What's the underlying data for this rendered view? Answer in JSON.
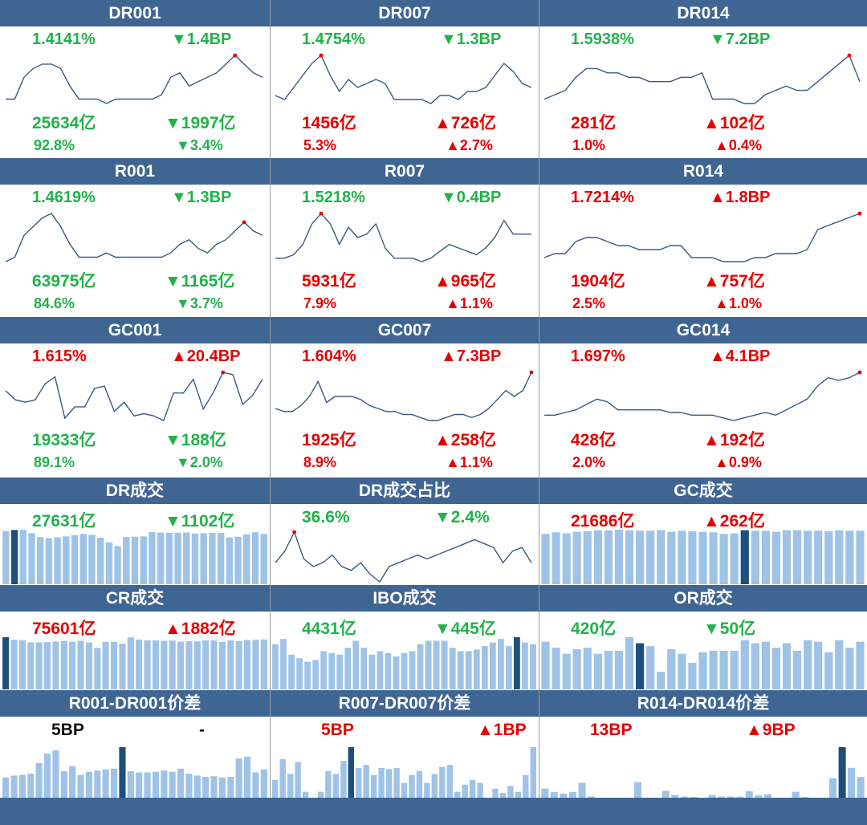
{
  "colors": {
    "header_bg": "#3f6593",
    "up": "#e50000",
    "down": "#21b24a",
    "line": "#3b5a80",
    "bar": "#9fc3e7",
    "bar_highlight": "#1e4f7c",
    "dot": "#e50000"
  },
  "panels": [
    {
      "title": "DR001",
      "rate": "1.4141%",
      "rate_chg": "▼1.4BP",
      "vol": "25634亿",
      "vol_chg": "▼1997亿",
      "pct": "92.8%",
      "pct_chg": "▼3.4%",
      "dir": {
        "rate": "dn",
        "rate_chg": "dn",
        "vol": "dn",
        "vol_chg": "dn",
        "pct": "dn",
        "pct_chg": "dn"
      }
    },
    {
      "title": "DR007",
      "rate": "1.4754%",
      "rate_chg": "▼1.3BP",
      "vol": "1456亿",
      "vol_chg": "▲726亿",
      "pct": "5.3%",
      "pct_chg": "▲2.7%",
      "dir": {
        "rate": "dn",
        "rate_chg": "dn",
        "vol": "up",
        "vol_chg": "up",
        "pct": "up",
        "pct_chg": "up"
      }
    },
    {
      "title": "DR014",
      "rate": "1.5938%",
      "rate_chg": "▼7.2BP",
      "vol": "281亿",
      "vol_chg": "▲102亿",
      "pct": "1.0%",
      "pct_chg": "▲0.4%",
      "dir": {
        "rate": "dn",
        "rate_chg": "dn",
        "vol": "up",
        "vol_chg": "up",
        "pct": "up",
        "pct_chg": "up"
      }
    },
    {
      "title": "R001",
      "rate": "1.4619%",
      "rate_chg": "▼1.3BP",
      "vol": "63975亿",
      "vol_chg": "▼1165亿",
      "pct": "84.6%",
      "pct_chg": "▼3.7%",
      "dir": {
        "rate": "dn",
        "rate_chg": "dn",
        "vol": "dn",
        "vol_chg": "dn",
        "pct": "dn",
        "pct_chg": "dn"
      }
    },
    {
      "title": "R007",
      "rate": "1.5218%",
      "rate_chg": "▼0.4BP",
      "vol": "5931亿",
      "vol_chg": "▲965亿",
      "pct": "7.9%",
      "pct_chg": "▲1.1%",
      "dir": {
        "rate": "dn",
        "rate_chg": "dn",
        "vol": "up",
        "vol_chg": "up",
        "pct": "up",
        "pct_chg": "up"
      }
    },
    {
      "title": "R014",
      "rate": "1.7214%",
      "rate_chg": "▲1.8BP",
      "vol": "1904亿",
      "vol_chg": "▲757亿",
      "pct": "2.5%",
      "pct_chg": "▲1.0%",
      "dir": {
        "rate": "up",
        "rate_chg": "up",
        "vol": "up",
        "vol_chg": "up",
        "pct": "up",
        "pct_chg": "up"
      }
    },
    {
      "title": "GC001",
      "rate": "1.615%",
      "rate_chg": "▲20.4BP",
      "vol": "19333亿",
      "vol_chg": "▼188亿",
      "pct": "89.1%",
      "pct_chg": "▼2.0%",
      "dir": {
        "rate": "up",
        "rate_chg": "up",
        "vol": "dn",
        "vol_chg": "dn",
        "pct": "dn",
        "pct_chg": "dn"
      }
    },
    {
      "title": "GC007",
      "rate": "1.604%",
      "rate_chg": "▲7.3BP",
      "vol": "1925亿",
      "vol_chg": "▲258亿",
      "pct": "8.9%",
      "pct_chg": "▲1.1%",
      "dir": {
        "rate": "up",
        "rate_chg": "up",
        "vol": "up",
        "vol_chg": "up",
        "pct": "up",
        "pct_chg": "up"
      }
    },
    {
      "title": "GC014",
      "rate": "1.697%",
      "rate_chg": "▲4.1BP",
      "vol": "428亿",
      "vol_chg": "▲192亿",
      "pct": "2.0%",
      "pct_chg": "▲0.9%",
      "dir": {
        "rate": "up",
        "rate_chg": "up",
        "vol": "up",
        "vol_chg": "up",
        "pct": "up",
        "pct_chg": "up"
      }
    },
    {
      "title": "DR成交",
      "val": "27631亿",
      "chg": "▼1102亿",
      "dir": {
        "val": "dn",
        "chg": "dn"
      }
    },
    {
      "title": "DR成交占比",
      "val": "36.6%",
      "chg": "▼2.4%",
      "dir": {
        "val": "dn",
        "chg": "dn"
      }
    },
    {
      "title": "GC成交",
      "val": "21686亿",
      "chg": "▲262亿",
      "dir": {
        "val": "up",
        "chg": "up"
      }
    },
    {
      "title": "CR成交",
      "val": "75601亿",
      "chg": "▲1882亿",
      "dir": {
        "val": "up",
        "chg": "up"
      }
    },
    {
      "title": "IBO成交",
      "val": "4431亿",
      "chg": "▼445亿",
      "dir": {
        "val": "dn",
        "chg": "dn"
      }
    },
    {
      "title": "OR成交",
      "val": "420亿",
      "chg": "▼50亿",
      "dir": {
        "val": "dn",
        "chg": "dn"
      }
    },
    {
      "title": "R001-DR001价差",
      "val": "5BP",
      "chg": "-",
      "dir": {
        "val": "bk",
        "chg": "bk"
      }
    },
    {
      "title": "R007-DR007价差",
      "val": "5BP",
      "chg": "▲1BP",
      "dir": {
        "val": "up",
        "chg": "up"
      }
    },
    {
      "title": "R014-DR014价差",
      "val": "13BP",
      "chg": "▲9BP",
      "dir": {
        "val": "up",
        "chg": "up"
      }
    }
  ],
  "chart_data": [
    {
      "type": "line",
      "panel": "DR001",
      "values": [
        1.38,
        1.38,
        1.43,
        1.45,
        1.46,
        1.46,
        1.45,
        1.41,
        1.38,
        1.38,
        1.38,
        1.37,
        1.38,
        1.38,
        1.38,
        1.38,
        1.38,
        1.39,
        1.43,
        1.44,
        1.41,
        1.42,
        1.43,
        1.44,
        1.46,
        1.48,
        1.46,
        1.44,
        1.43
      ],
      "peak_index": 25
    },
    {
      "type": "line",
      "panel": "DR007",
      "values": [
        1.43,
        1.42,
        1.45,
        1.48,
        1.51,
        1.53,
        1.48,
        1.44,
        1.47,
        1.45,
        1.46,
        1.47,
        1.46,
        1.42,
        1.42,
        1.42,
        1.42,
        1.41,
        1.43,
        1.43,
        1.42,
        1.44,
        1.44,
        1.45,
        1.48,
        1.51,
        1.49,
        1.46,
        1.45
      ],
      "peak_index": 5
    },
    {
      "type": "line",
      "panel": "DR014",
      "values": [
        1.56,
        1.57,
        1.58,
        1.61,
        1.63,
        1.63,
        1.62,
        1.62,
        1.61,
        1.61,
        1.6,
        1.6,
        1.6,
        1.61,
        1.61,
        1.62,
        1.56,
        1.56,
        1.56,
        1.55,
        1.55,
        1.57,
        1.58,
        1.59,
        1.58,
        1.58,
        1.6,
        1.62,
        1.64,
        1.66,
        1.6
      ],
      "peak_index": 29
    },
    {
      "type": "line",
      "panel": "R001",
      "values": [
        1.4,
        1.41,
        1.46,
        1.48,
        1.5,
        1.51,
        1.48,
        1.44,
        1.41,
        1.41,
        1.41,
        1.42,
        1.41,
        1.41,
        1.41,
        1.41,
        1.41,
        1.41,
        1.42,
        1.44,
        1.45,
        1.43,
        1.42,
        1.44,
        1.45,
        1.47,
        1.49,
        1.47,
        1.46
      ],
      "peak_index": 26
    },
    {
      "type": "line",
      "panel": "R007",
      "values": [
        1.45,
        1.45,
        1.46,
        1.49,
        1.55,
        1.58,
        1.55,
        1.49,
        1.54,
        1.51,
        1.52,
        1.55,
        1.48,
        1.45,
        1.45,
        1.45,
        1.44,
        1.45,
        1.47,
        1.49,
        1.48,
        1.47,
        1.46,
        1.48,
        1.51,
        1.56,
        1.52,
        1.52,
        1.52
      ],
      "peak_index": 5
    },
    {
      "type": "line",
      "panel": "R014",
      "values": [
        1.63,
        1.64,
        1.64,
        1.67,
        1.68,
        1.68,
        1.67,
        1.66,
        1.66,
        1.65,
        1.65,
        1.65,
        1.66,
        1.66,
        1.63,
        1.63,
        1.63,
        1.62,
        1.62,
        1.62,
        1.63,
        1.63,
        1.64,
        1.64,
        1.64,
        1.65,
        1.7,
        1.71,
        1.72,
        1.73,
        1.74
      ],
      "peak_index": 30
    },
    {
      "type": "line",
      "panel": "GC001",
      "values": [
        1.5,
        1.46,
        1.45,
        1.46,
        1.53,
        1.56,
        1.38,
        1.43,
        1.43,
        1.51,
        1.52,
        1.41,
        1.45,
        1.39,
        1.4,
        1.39,
        1.37,
        1.49,
        1.49,
        1.55,
        1.42,
        1.49,
        1.58,
        1.57,
        1.44,
        1.48,
        1.55
      ],
      "peak_index": 22
    },
    {
      "type": "line",
      "panel": "GC007",
      "values": [
        1.46,
        1.45,
        1.45,
        1.47,
        1.5,
        1.55,
        1.48,
        1.5,
        1.5,
        1.5,
        1.49,
        1.47,
        1.46,
        1.45,
        1.45,
        1.44,
        1.44,
        1.43,
        1.42,
        1.42,
        1.43,
        1.44,
        1.44,
        1.43,
        1.44,
        1.46,
        1.49,
        1.52,
        1.5,
        1.52,
        1.58
      ],
      "peak_index": 30
    },
    {
      "type": "line",
      "panel": "GC014",
      "values": [
        1.58,
        1.58,
        1.59,
        1.6,
        1.62,
        1.64,
        1.63,
        1.6,
        1.6,
        1.6,
        1.6,
        1.6,
        1.59,
        1.59,
        1.58,
        1.58,
        1.58,
        1.57,
        1.56,
        1.57,
        1.58,
        1.59,
        1.58,
        1.6,
        1.62,
        1.64,
        1.69,
        1.72,
        1.71,
        1.72,
        1.74
      ],
      "peak_index": 30
    },
    {
      "type": "bar",
      "panel": "DR成交",
      "values": [
        28500,
        28800,
        28900,
        27900,
        26800,
        26500,
        26700,
        27000,
        27300,
        27700,
        27400,
        26600,
        25300,
        24200,
        26800,
        26900,
        27000,
        28200,
        28100,
        28000,
        28000,
        28100,
        27800,
        27900,
        28000,
        28000,
        26700,
        26900,
        27600,
        28200,
        27700
      ],
      "highlight_index": 1
    },
    {
      "type": "line",
      "panel": "DR成交占比",
      "values": [
        36,
        39,
        44,
        37,
        35,
        36,
        38,
        35,
        34,
        36,
        33,
        31,
        35,
        36,
        37,
        38,
        37,
        38,
        39,
        40,
        41,
        42,
        41,
        40,
        36,
        39,
        40,
        36
      ],
      "peak_index": 2
    },
    {
      "type": "bar",
      "panel": "GC成交",
      "values": [
        21200,
        21500,
        21300,
        21600,
        21700,
        21900,
        21900,
        22000,
        21900,
        21800,
        21800,
        21900,
        21600,
        21800,
        21700,
        21600,
        21500,
        21200,
        21300,
        21900,
        21800,
        21800,
        21600,
        21900,
        21900,
        21800,
        21800,
        21700,
        21900,
        21800,
        21800
      ],
      "highlight_index": 19
    },
    {
      "type": "bar",
      "panel": "CR成交",
      "values": [
        76200,
        74300,
        74000,
        72400,
        72400,
        72600,
        73000,
        73400,
        72900,
        73600,
        72300,
        68300,
        72700,
        72800,
        71400,
        76100,
        74400,
        73900,
        73800,
        73600,
        73700,
        73000,
        73300,
        73100,
        73900,
        73900,
        72800,
        73800,
        73300,
        74100,
        74300,
        74600
      ],
      "highlight_index": 0
    },
    {
      "type": "bar",
      "panel": "IBO成交",
      "values": [
        4500,
        4800,
        3900,
        3700,
        3500,
        3600,
        4100,
        4000,
        3900,
        4300,
        4700,
        4300,
        3900,
        4100,
        4000,
        3800,
        4000,
        4100,
        4500,
        4700,
        4700,
        4700,
        4300,
        4100,
        4100,
        4200,
        4400,
        4600,
        4800,
        4400,
        4900,
        4600,
        4500
      ],
      "highlight_index": 30
    },
    {
      "type": "bar",
      "panel": "OR成交",
      "values": [
        460,
        420,
        380,
        410,
        420,
        380,
        400,
        400,
        490,
        450,
        430,
        260,
        410,
        380,
        320,
        390,
        400,
        400,
        400,
        470,
        450,
        460,
        420,
        450,
        400,
        470,
        460,
        390,
        470,
        420,
        460
      ],
      "highlight_index": 9
    },
    {
      "type": "bar",
      "panel": "R001-DR001价差",
      "values": [
        3.2,
        3.5,
        3.6,
        3.8,
        5.5,
        7.0,
        7.5,
        4.2,
        5.0,
        3.6,
        4.1,
        4.3,
        4.5,
        4.6,
        8.0,
        4.2,
        4.0,
        4.0,
        4.1,
        4.3,
        4.1,
        4.6,
        3.8,
        3.5,
        3.3,
        3.4,
        3.2,
        3.3,
        6.2,
        6.5,
        4.0,
        4.5
      ],
      "highlight_index": 14
    },
    {
      "type": "bar",
      "panel": "R007-DR007价差",
      "values": [
        3.0,
        6.5,
        4.0,
        6.0,
        1.0,
        0,
        1.0,
        4.5,
        4.0,
        6.2,
        8.5,
        5.0,
        5.5,
        3.8,
        5.0,
        4.8,
        5.0,
        2.5,
        3.8,
        4.5,
        2.5,
        4.0,
        5.2,
        5.5,
        1.0,
        2.2,
        3.0,
        2.5,
        0,
        1.5,
        0.8,
        2.0,
        1.0,
        3.8,
        8.5
      ],
      "highlight_index": 10
    },
    {
      "type": "bar",
      "panel": "R014-DR014价差",
      "values": [
        4.0,
        2.5,
        1.8,
        2.5,
        6.5,
        0.5,
        0,
        0,
        0,
        0,
        6.8,
        0,
        0,
        3.0,
        1.2,
        0.5,
        0.3,
        0,
        1.2,
        0.5,
        0.5,
        0.5,
        2.8,
        1.0,
        1.5,
        0,
        0,
        2.6,
        0.3,
        0,
        0,
        8.5,
        22.0,
        13.0,
        9.0
      ],
      "highlight_index": 32
    }
  ]
}
